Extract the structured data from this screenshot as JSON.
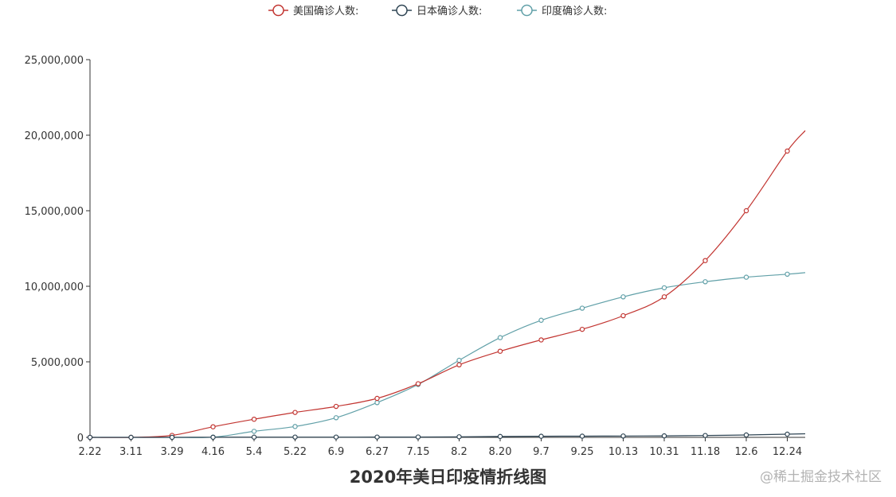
{
  "chart_data": {
    "type": "line",
    "title": "2020年美日印疫情折线图",
    "legend_position": "top-center",
    "grid": false,
    "colors": {
      "us": "#c23531",
      "japan": "#2f4554",
      "india": "#61a0a8"
    },
    "x_tick_labels": [
      "2.22",
      "3.11",
      "3.29",
      "4.16",
      "5.4",
      "5.22",
      "6.9",
      "6.27",
      "7.15",
      "8.2",
      "8.20",
      "9.7",
      "9.25",
      "10.13",
      "10.31",
      "11.18",
      "12.6",
      "12.24"
    ],
    "y_tick_labels": [
      "0",
      "5,000,000",
      "10,000,000",
      "15,000,000",
      "20,000,000",
      "25,000,000"
    ],
    "ylim": [
      0,
      25000000
    ],
    "series": [
      {
        "key": "us",
        "name": "美国确诊人数:",
        "values": [
          15,
          1700,
          130000,
          700000,
          1200000,
          1650000,
          2050000,
          2580000,
          3550000,
          4800000,
          5700000,
          6450000,
          7150000,
          8050000,
          9300000,
          11700000,
          15000000,
          18950000
        ],
        "end_value": 20300000
      },
      {
        "key": "japan",
        "name": "日本确诊人数:",
        "values": [
          130,
          600,
          2000,
          9200,
          15200,
          16500,
          17300,
          18500,
          23500,
          37500,
          59000,
          73000,
          80000,
          89000,
          101000,
          123000,
          160000,
          213000
        ],
        "end_value": 235000
      },
      {
        "key": "india",
        "name": "印度确诊人数:",
        "values": [
          3,
          60,
          1000,
          13000,
          400000,
          720000,
          1300000,
          2300000,
          3500000,
          5100000,
          6600000,
          7750000,
          8550000,
          9300000,
          9900000,
          10300000,
          10600000,
          10800000
        ],
        "end_value": 10900000
      }
    ]
  },
  "watermark": "@稀土掘金技术社区"
}
